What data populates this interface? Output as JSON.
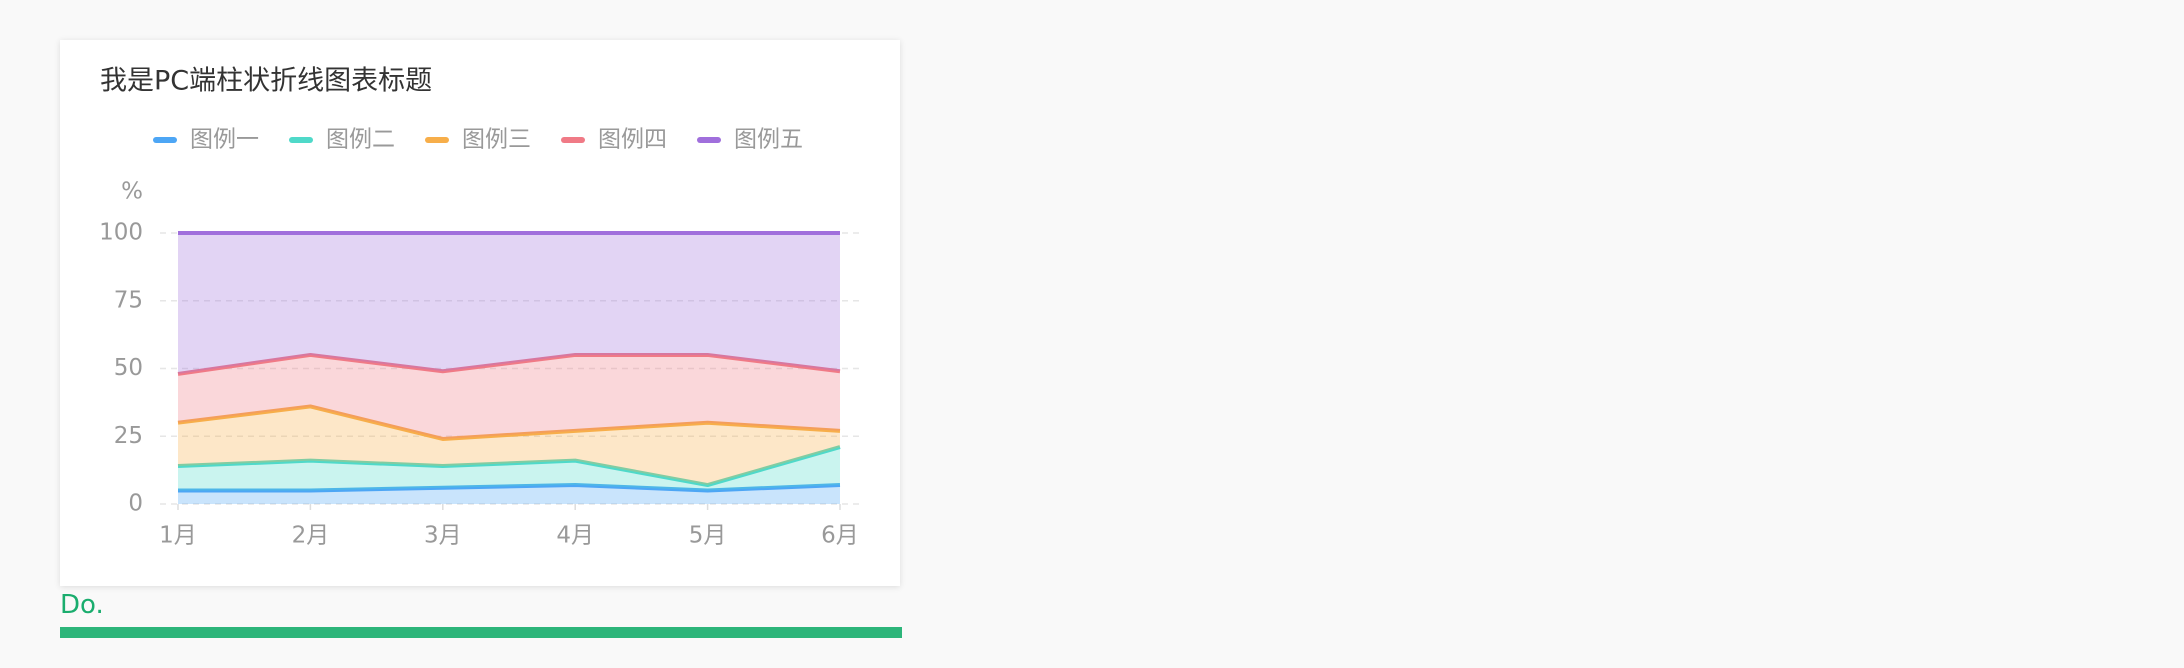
{
  "chart_data": {
    "type": "area",
    "stacked": true,
    "title": "我是PC端柱状折线图表标题",
    "y_unit": "%",
    "categories": [
      "1月",
      "2月",
      "3月",
      "4月",
      "5月",
      "6月"
    ],
    "series": [
      {
        "name": "图例一",
        "color": "#4da6f5",
        "values": [
          5,
          5,
          6,
          7,
          5,
          7
        ]
      },
      {
        "name": "图例二",
        "color": "#4fd9c9",
        "values": [
          9,
          11,
          8,
          9,
          2,
          14
        ]
      },
      {
        "name": "图例三",
        "color": "#f7ae4a",
        "values": [
          16,
          20,
          10,
          11,
          23,
          6
        ]
      },
      {
        "name": "图例四",
        "color": "#f07a86",
        "values": [
          18,
          19,
          25,
          28,
          25,
          22
        ]
      },
      {
        "name": "图例五",
        "color": "#a06fdc",
        "values": [
          52,
          45,
          51,
          45,
          45,
          51
        ]
      }
    ],
    "ylim": [
      0,
      100
    ],
    "yticks": [
      0,
      25,
      50,
      75,
      100
    ],
    "grid": true,
    "legend": "top"
  },
  "footer": {
    "text": "Do."
  }
}
